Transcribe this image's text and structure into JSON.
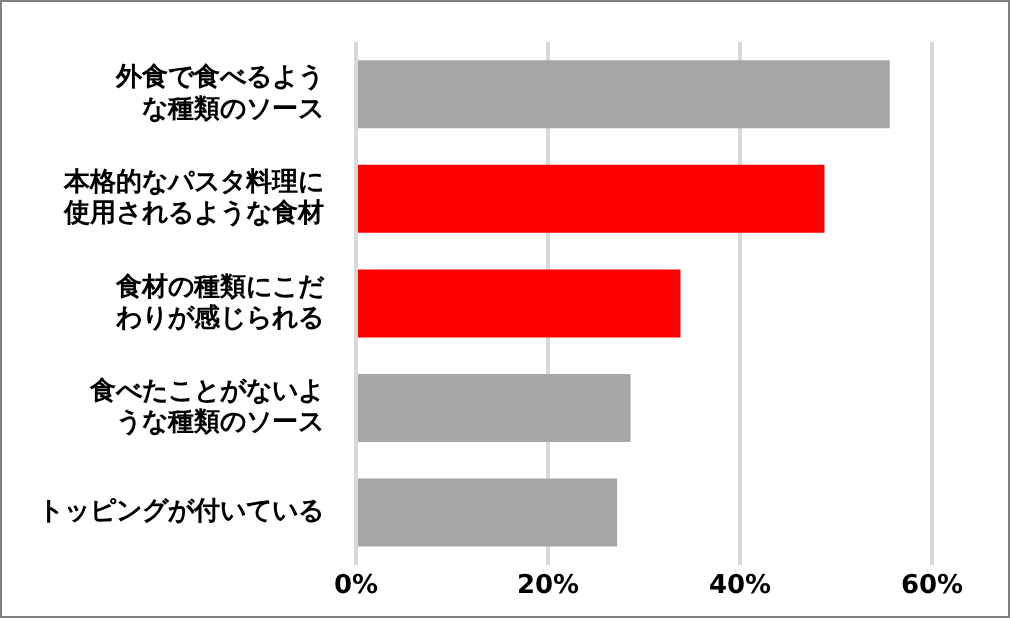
{
  "chart_data": {
    "type": "bar",
    "orientation": "horizontal",
    "categories": [
      "外食で食べるような種類のソース",
      "本格的なパスタ料理に使用されるような食材",
      "食材の種類にこだわりが感じられる",
      "食べたことがないような種類のソース",
      "トッピングが付いている"
    ],
    "values": [
      55.6,
      48.8,
      33.8,
      28.6,
      27.2
    ],
    "colors": [
      "#a6a6a6",
      "#ff0000",
      "#ff0000",
      "#a6a6a6",
      "#a6a6a6"
    ],
    "xlim": [
      0,
      60
    ],
    "xticks": [
      {
        "value": 0,
        "label": "0%"
      },
      {
        "value": 20,
        "label": "20%"
      },
      {
        "value": 40,
        "label": "40%"
      },
      {
        "value": 60,
        "label": "60%"
      }
    ],
    "grid": "x",
    "legend": false
  }
}
